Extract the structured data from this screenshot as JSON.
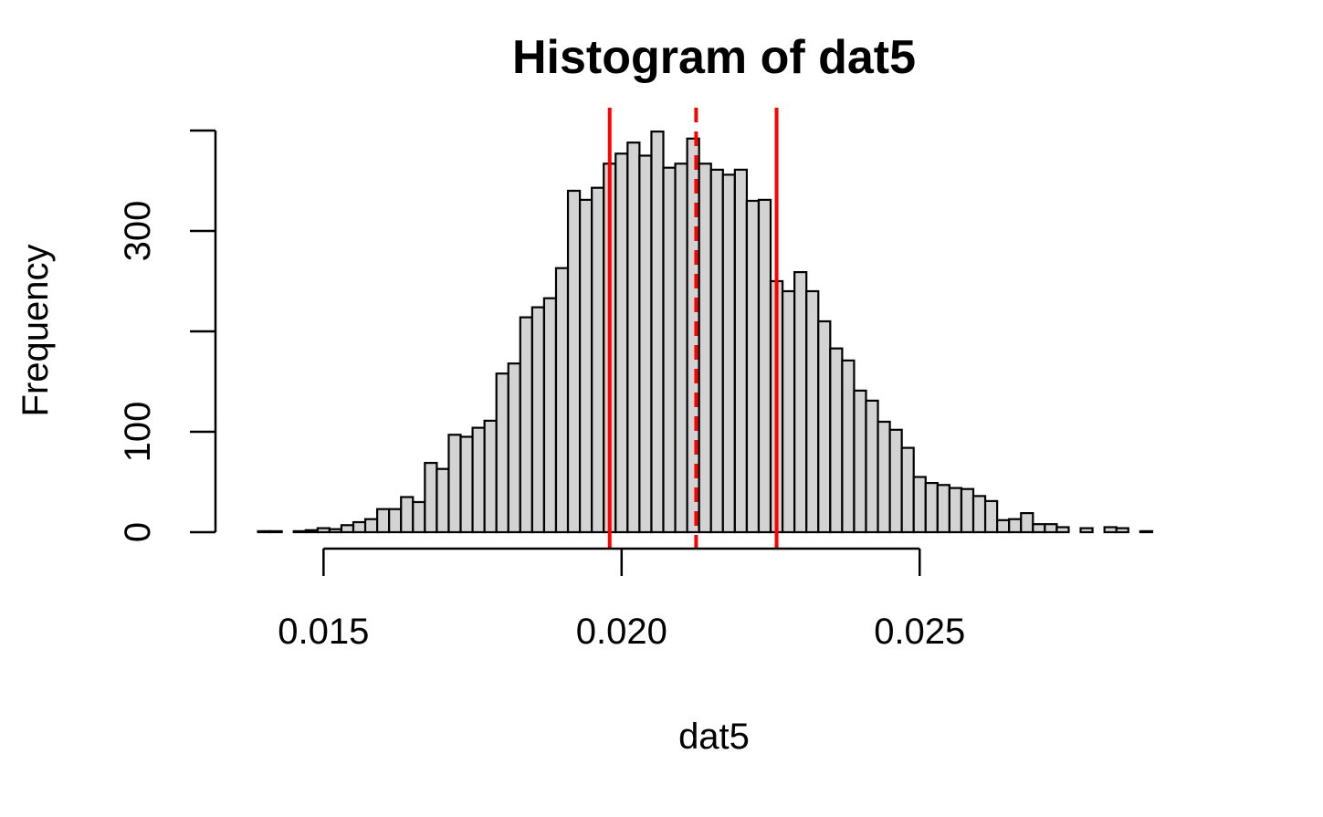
{
  "chart_data": {
    "type": "bar",
    "title": "Histogram of dat5",
    "xlabel": "dat5",
    "ylabel": "Frequency",
    "xlim": [
      0.0138,
      0.0293
    ],
    "ylim": [
      0,
      400
    ],
    "x_ticks": [
      0.015,
      0.02,
      0.025
    ],
    "x_tick_labels": [
      "0.015",
      "0.020",
      "0.025"
    ],
    "y_ticks": [
      0,
      100,
      200,
      300,
      400
    ],
    "y_tick_labels": [
      "0",
      "100",
      "",
      "300",
      ""
    ],
    "bin_start": 0.0139,
    "bin_width": 0.0002,
    "values": [
      1,
      1,
      0,
      1,
      2,
      4,
      3,
      7,
      10,
      13,
      23,
      23,
      35,
      30,
      69,
      63,
      97,
      95,
      104,
      111,
      158,
      168,
      214,
      224,
      233,
      263,
      340,
      331,
      343,
      367,
      377,
      388,
      375,
      399,
      363,
      367,
      392,
      367,
      361,
      356,
      361,
      330,
      331,
      250,
      240,
      259,
      240,
      210,
      183,
      171,
      141,
      131,
      110,
      102,
      84,
      55,
      49,
      47,
      44,
      43,
      36,
      31,
      12,
      13,
      19,
      8,
      8,
      5,
      0,
      4,
      0,
      5,
      4,
      0,
      1
    ],
    "reference_lines": [
      {
        "value": 0.0198,
        "style": "solid",
        "color": "#ff0000"
      },
      {
        "value": 0.02125,
        "style": "dashed",
        "color": "#ff0000"
      },
      {
        "value": 0.0226,
        "style": "solid",
        "color": "#ff0000"
      }
    ],
    "bar_fill": "#d3d3d3",
    "bar_stroke": "#000000",
    "grid": false,
    "legend": "none"
  }
}
